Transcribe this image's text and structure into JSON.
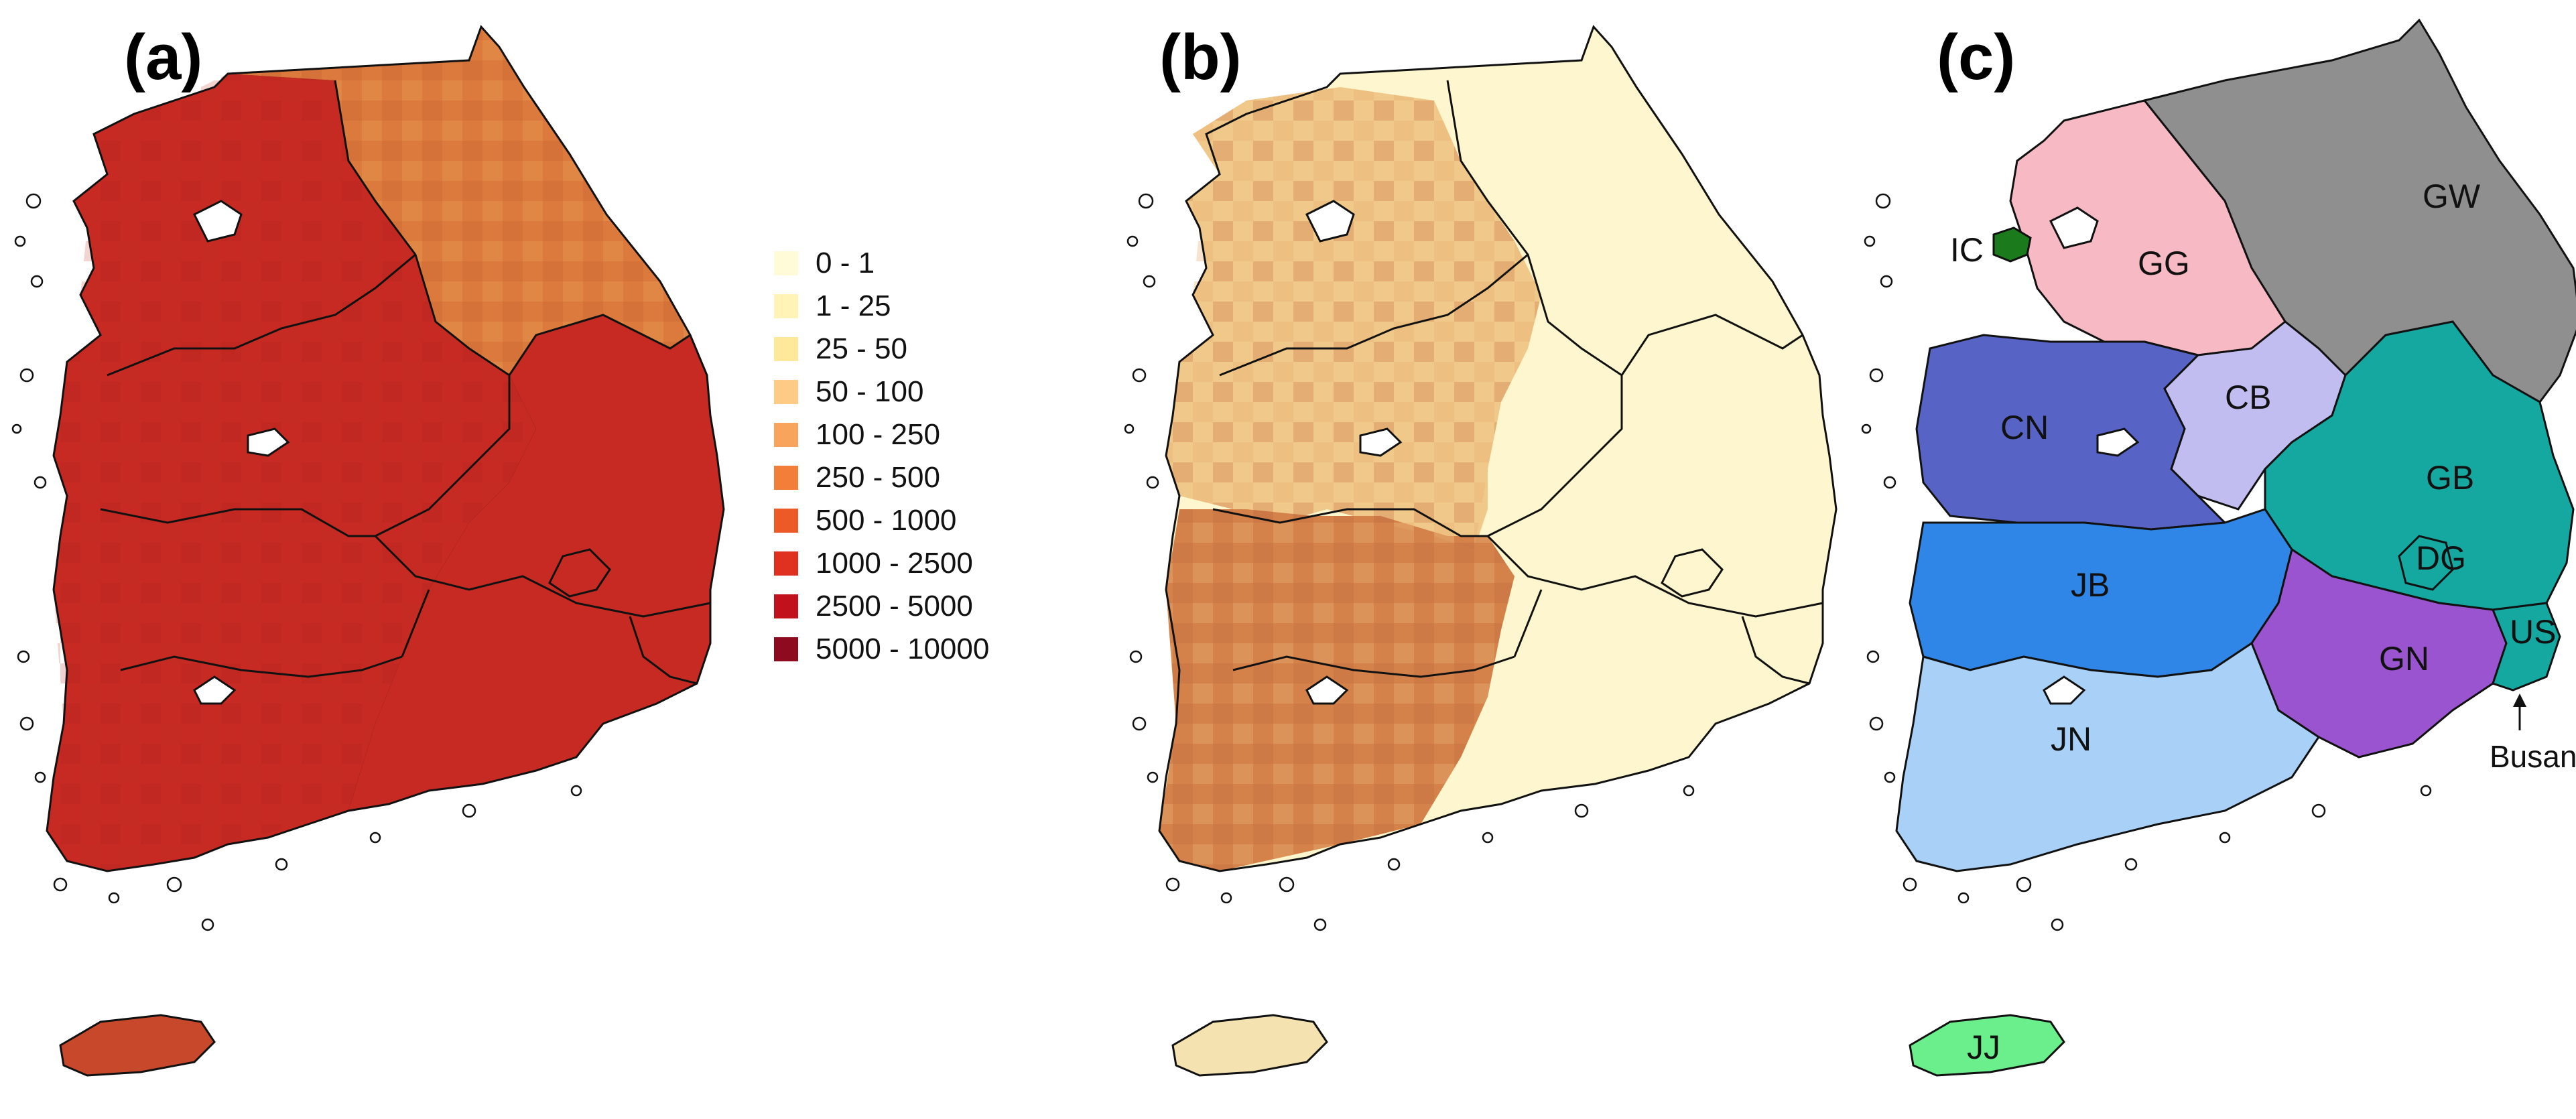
{
  "panels": [
    {
      "label": "(a)"
    },
    {
      "label": "(b)"
    },
    {
      "label": "(c)"
    }
  ],
  "legend": {
    "items": [
      {
        "label": "0 - 1",
        "color": "#fffbd9"
      },
      {
        "label": "1 - 25",
        "color": "#fff3b8"
      },
      {
        "label": "25 - 50",
        "color": "#fee89a"
      },
      {
        "label": "50 - 100",
        "color": "#fdcb86"
      },
      {
        "label": "100 - 250",
        "color": "#f9a45c"
      },
      {
        "label": "250 - 500",
        "color": "#f37e3a"
      },
      {
        "label": "500 - 1000",
        "color": "#ec5a28"
      },
      {
        "label": "1000 - 2500",
        "color": "#e0301f"
      },
      {
        "label": "2500 - 5000",
        "color": "#c0111c"
      },
      {
        "label": "5000 - 10000",
        "color": "#8e0a1f"
      }
    ]
  },
  "regions": [
    {
      "code": "GW",
      "color": "#8f8f8f"
    },
    {
      "code": "GG",
      "color": "#f7b9c4"
    },
    {
      "code": "IC",
      "color": "#1b7a1b"
    },
    {
      "code": "CB",
      "color": "#c2bdf0"
    },
    {
      "code": "CN",
      "color": "#5863c6"
    },
    {
      "code": "GB",
      "color": "#14a8a0"
    },
    {
      "code": "DG",
      "color": "#14a8a0"
    },
    {
      "code": "JB",
      "color": "#2f86e6"
    },
    {
      "code": "GN",
      "color": "#9a54cf"
    },
    {
      "code": "US",
      "color": "#14a8a0"
    },
    {
      "code": "JN",
      "color": "#a9d1f7"
    },
    {
      "code": "JJ",
      "color": "#6bef8c"
    }
  ],
  "annotations": {
    "busan": "Busan"
  },
  "map_colors": {
    "a_main": "#c62a22",
    "a_east": "#db7a3c",
    "a_hatch": "#e07f3e",
    "b_light": "#fef6cf",
    "b_mid": "#f0c98a",
    "b_dark": "#d4824a",
    "jj_a": "#c8482b",
    "jj_b": "#f4e3b0"
  }
}
